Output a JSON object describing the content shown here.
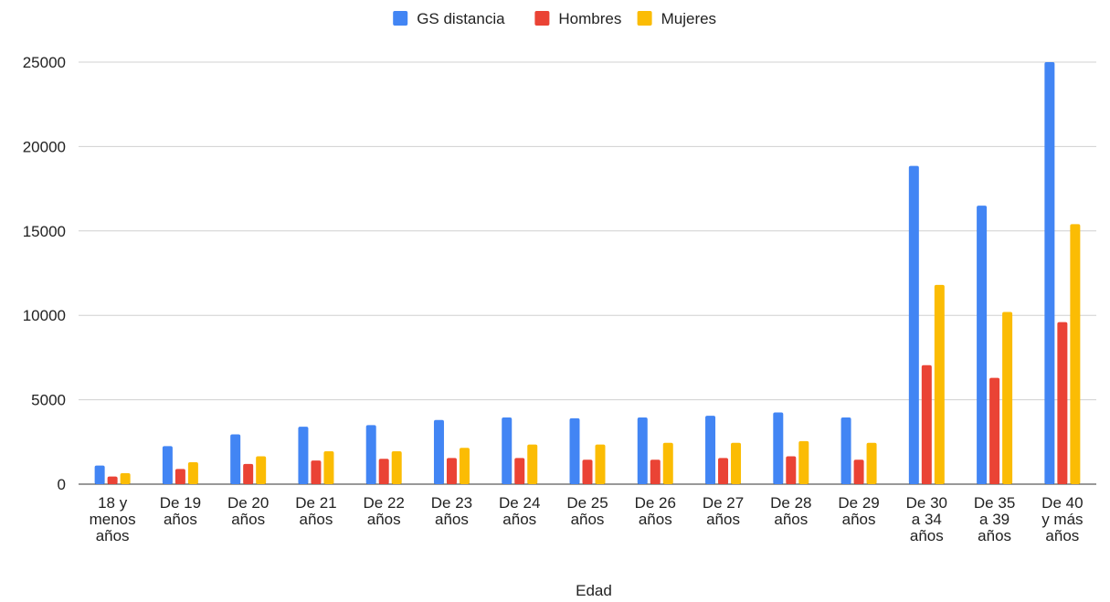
{
  "chart_data": {
    "type": "bar",
    "xlabel": "Edad",
    "ylabel": "",
    "ylim": [
      0,
      25000
    ],
    "yticks": [
      0,
      5000,
      10000,
      15000,
      20000,
      25000
    ],
    "grid": true,
    "legend_position": "top-center",
    "categories": [
      [
        "18 y",
        "menos",
        "años"
      ],
      [
        "De 19",
        "años"
      ],
      [
        "De 20",
        "años"
      ],
      [
        "De 21",
        "años"
      ],
      [
        "De 22",
        "años"
      ],
      [
        "De 23",
        "años"
      ],
      [
        "De 24",
        "años"
      ],
      [
        "De 25",
        "años"
      ],
      [
        "De 26",
        "años"
      ],
      [
        "De 27",
        "años"
      ],
      [
        "De 28",
        "años"
      ],
      [
        "De 29",
        "años"
      ],
      [
        "De 30",
        "a 34",
        "años"
      ],
      [
        "De 35",
        "a 39",
        "años"
      ],
      [
        "De 40",
        "y más",
        "años"
      ]
    ],
    "series": [
      {
        "name": "GS distancia",
        "color": "#4285f4",
        "values": [
          1100,
          2250,
          2950,
          3400,
          3500,
          3800,
          3950,
          3900,
          3950,
          4050,
          4250,
          3950,
          18850,
          16500,
          25000
        ]
      },
      {
        "name": "Hombres",
        "color": "#ea4335",
        "values": [
          450,
          900,
          1200,
          1400,
          1500,
          1550,
          1550,
          1450,
          1450,
          1550,
          1650,
          1450,
          7050,
          6300,
          9600
        ]
      },
      {
        "name": "Mujeres",
        "color": "#fbbc04",
        "values": [
          650,
          1300,
          1650,
          1950,
          1950,
          2150,
          2350,
          2350,
          2450,
          2450,
          2550,
          2450,
          11800,
          10200,
          15400
        ]
      }
    ]
  }
}
